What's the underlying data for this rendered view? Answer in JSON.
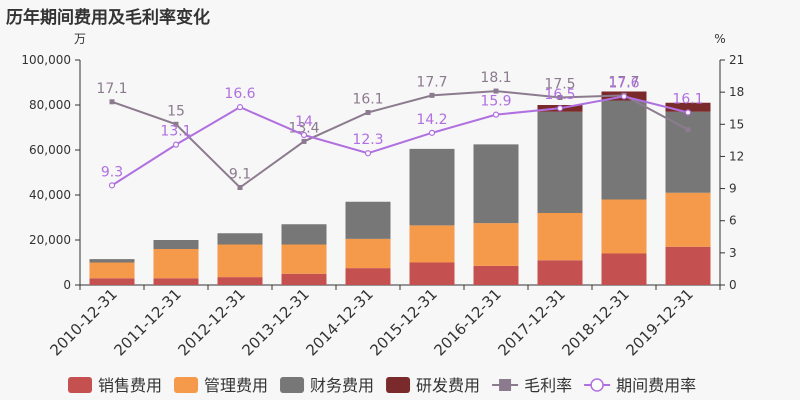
{
  "title": "历年期间费用及毛利率变化",
  "chart_data": {
    "type": "bar",
    "stacked": true,
    "categories": [
      "2010-12-31",
      "2011-12-31",
      "2012-12-31",
      "2013-12-31",
      "2014-12-31",
      "2015-12-31",
      "2016-12-31",
      "2017-12-31",
      "2018-12-31",
      "2019-12-31"
    ],
    "y_left": {
      "unit": "万",
      "min": 0,
      "max": 100000,
      "ticks": [
        "0",
        "20,000",
        "40,000",
        "60,000",
        "80,000",
        "100,000"
      ]
    },
    "y_right": {
      "unit": "%",
      "min": 0,
      "max": 21,
      "ticks": [
        "0",
        "3",
        "6",
        "9",
        "12",
        "15",
        "18",
        "21"
      ]
    },
    "series": [
      {
        "name": "销售费用",
        "kind": "bar",
        "color": "#c55050",
        "values": [
          3000,
          3000,
          3500,
          5000,
          7500,
          10000,
          8500,
          11000,
          14000,
          17000
        ]
      },
      {
        "name": "管理费用",
        "kind": "bar",
        "color": "#f5994a",
        "values": [
          7000,
          13000,
          14500,
          13000,
          13000,
          16500,
          19000,
          21000,
          24000,
          24000
        ]
      },
      {
        "name": "财务费用",
        "kind": "bar",
        "color": "#777777",
        "values": [
          1500,
          4000,
          5000,
          9000,
          16500,
          34000,
          35000,
          45000,
          44000,
          36000
        ]
      },
      {
        "name": "研发费用",
        "kind": "bar",
        "color": "#7a2a2a",
        "values": [
          0,
          0,
          0,
          0,
          0,
          0,
          0,
          3000,
          4000,
          4000
        ]
      },
      {
        "name": "毛利率",
        "kind": "line",
        "axis": "right",
        "color": "#8c7b8e",
        "marker": "square",
        "values": [
          17.1,
          15,
          9.1,
          13.4,
          16.1,
          17.7,
          18.1,
          17.5,
          17.7,
          14.5
        ],
        "labels": [
          "17.1",
          "15",
          "9.1",
          "13.4",
          "16.1",
          "17.7",
          "18.1",
          "17.5",
          "17.7",
          ""
        ]
      },
      {
        "name": "期间费用率",
        "kind": "line",
        "axis": "right",
        "color": "#b070e0",
        "marker": "circle",
        "values": [
          9.3,
          13.1,
          16.6,
          14,
          12.3,
          14.2,
          15.9,
          16.5,
          17.6,
          16.1
        ],
        "labels": [
          "9.3",
          "13.1",
          "16.6",
          "14",
          "12.3",
          "14.2",
          "15.9",
          "16.5",
          "17.6",
          "16.1"
        ]
      }
    ]
  }
}
